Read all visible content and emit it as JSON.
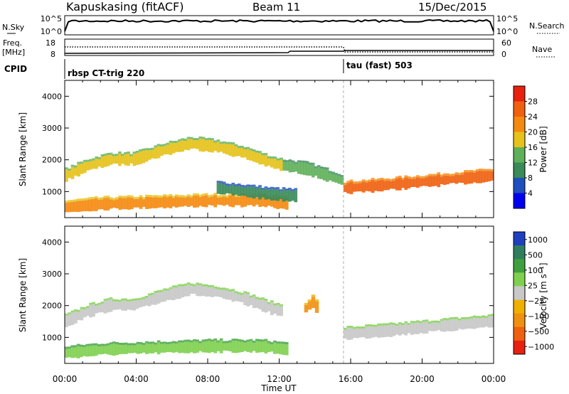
{
  "header": {
    "station": "Kapuskasing (fitACF)",
    "beam": "Beam 11",
    "date": "15/Dec/2015"
  },
  "nsky_panel": {
    "left_label": "N.Sky",
    "right_label": "N.Search",
    "left_ticks": [
      "10^5",
      "10^0"
    ],
    "right_ticks": [
      "10^5",
      "10^0"
    ]
  },
  "freq_panel": {
    "left_label_line1": "Freq.",
    "left_label_line2": "[MHz]",
    "right_label": "Nave",
    "left_ticks": [
      "18",
      "8"
    ],
    "right_ticks": [
      "60",
      "0"
    ]
  },
  "cpid_panel": {
    "label": "CPID",
    "modes": [
      {
        "name": "rbsp CT-trig 220",
        "start_hour": 0
      },
      {
        "name": "tau (fast) 503",
        "start_hour": 15.6
      }
    ]
  },
  "time_axis": {
    "xlabel": "Time UT",
    "range_hours": [
      0,
      24
    ],
    "tick_labels": [
      "00:00",
      "04:00",
      "08:00",
      "12:00",
      "16:00",
      "20:00",
      "00:00"
    ]
  },
  "colors": {
    "power_scale": [
      "#0000ee",
      "#1f4fbf",
      "#3a8a5a",
      "#5fb05a",
      "#e6c21a",
      "#f58a10",
      "#f06010",
      "#e82010"
    ],
    "velocity_scale": [
      "#1f3fbf",
      "#2f7f5f",
      "#3fa03f",
      "#80d050",
      "#c8c8c8",
      "#f0b000",
      "#f09010",
      "#f06010",
      "#e82010"
    ]
  },
  "chart_data": [
    {
      "type": "heatmap",
      "name": "power",
      "ylabel": "Slant Range [km]",
      "xlabel": "",
      "x_range_hours": [
        0,
        24
      ],
      "ylim": [
        180,
        4500
      ],
      "y_ticks": [
        1000,
        2000,
        3000,
        4000
      ],
      "colorbar": {
        "label": "Power [dB]",
        "range": [
          0,
          32
        ],
        "ticks": [
          "4",
          "8",
          "12",
          "16",
          "20",
          "24",
          "28"
        ]
      },
      "bands": [
        {
          "hours": [
            0,
            1.2,
            2.5,
            3.8,
            5.5,
            7.0,
            8.5,
            10.0,
            11.5,
            12.2
          ],
          "range_km": [
            1500,
            1800,
            2000,
            2000,
            2300,
            2500,
            2400,
            2200,
            1900,
            1800
          ],
          "value_db": 18
        },
        {
          "hours": [
            12.2,
            13.5,
            14.6,
            15.6
          ],
          "range_km": [
            1800,
            1700,
            1500,
            1300
          ],
          "value_db": 14
        },
        {
          "hours": [
            15.6,
            18.0,
            20.0,
            22.0,
            24.0
          ],
          "range_km": [
            1100,
            1200,
            1300,
            1400,
            1500
          ],
          "value_db": 26
        },
        {
          "hours": [
            0,
            2.0,
            5.0,
            8.0,
            11.0,
            12.5
          ],
          "range_km": [
            500,
            600,
            650,
            700,
            700,
            600
          ],
          "value_db": 22
        },
        {
          "hours": [
            8.5,
            10.0,
            11.5,
            13.0
          ],
          "range_km": [
            1100,
            1000,
            900,
            850
          ],
          "value_db": 10
        }
      ]
    },
    {
      "type": "heatmap",
      "name": "velocity",
      "ylabel": "Slant Range [km]",
      "xlabel": "Time UT",
      "x_range_hours": [
        0,
        24
      ],
      "ylim": [
        180,
        4500
      ],
      "y_ticks": [
        1000,
        2000,
        3000,
        4000
      ],
      "colorbar": {
        "label": "Velocity [m s⁻¹]",
        "range": [
          -1200,
          1200
        ],
        "ticks": [
          "1000",
          "500",
          "100",
          "25",
          "−25",
          "−100",
          "−500",
          "−1000"
        ]
      },
      "bands": [
        {
          "hours": [
            0,
            1.2,
            2.5,
            3.8,
            5.5,
            7.0,
            8.5,
            10.0,
            11.5,
            12.2
          ],
          "range_km": [
            1500,
            1800,
            2000,
            2000,
            2300,
            2500,
            2400,
            2200,
            1900,
            1800
          ],
          "value_ms": 0
        },
        {
          "hours": [
            13.4,
            13.8,
            14.2
          ],
          "range_km": [
            1900,
            2100,
            1800
          ],
          "value_ms": -300
        },
        {
          "hours": [
            15.6,
            18.0,
            20.0,
            22.0,
            24.0
          ],
          "range_km": [
            1100,
            1200,
            1300,
            1400,
            1500
          ],
          "value_ms": 0
        },
        {
          "hours": [
            0,
            2.0,
            5.0,
            8.0,
            11.0,
            12.5
          ],
          "range_km": [
            500,
            600,
            650,
            700,
            700,
            600
          ],
          "value_ms": 50
        }
      ]
    }
  ]
}
